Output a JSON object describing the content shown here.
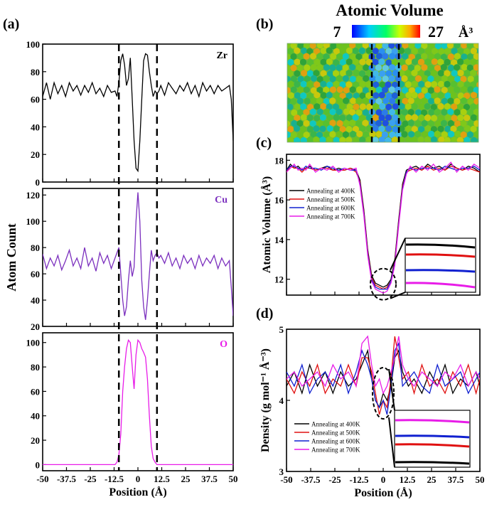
{
  "figure": {
    "panel_labels": [
      "(a)",
      "(b)",
      "(c)",
      "(d)"
    ],
    "dashed_marker_positions": [
      -10,
      10
    ]
  },
  "chart_data": [
    {
      "id": "a-zr",
      "type": "line",
      "panel": "(a)",
      "series_label": "Zr",
      "color": "#000000",
      "xlim": [
        -50,
        50
      ],
      "ylim": [
        0,
        100
      ],
      "yticks": [
        0,
        20,
        40,
        60,
        80,
        100
      ],
      "x": [
        -50,
        -48,
        -46,
        -44,
        -42,
        -40,
        -38,
        -36,
        -34,
        -32,
        -30,
        -28,
        -26,
        -24,
        -22,
        -20,
        -18,
        -16,
        -14,
        -12,
        -11,
        -10,
        -9,
        -8,
        -7,
        -6,
        -5,
        -4,
        -3,
        -2,
        -1,
        0,
        1,
        2,
        3,
        4,
        5,
        6,
        7,
        8,
        9,
        10,
        11,
        12,
        14,
        16,
        18,
        20,
        22,
        24,
        26,
        28,
        30,
        32,
        34,
        36,
        38,
        40,
        42,
        44,
        46,
        48,
        49,
        50
      ],
      "y": [
        62,
        72,
        60,
        72,
        64,
        70,
        62,
        72,
        66,
        70,
        63,
        70,
        65,
        72,
        64,
        68,
        62,
        70,
        65,
        66,
        62,
        72,
        88,
        93,
        85,
        70,
        75,
        90,
        60,
        30,
        10,
        8,
        30,
        60,
        88,
        93,
        92,
        80,
        70,
        62,
        66,
        64,
        66,
        70,
        63,
        72,
        68,
        64,
        70,
        66,
        72,
        64,
        70,
        62,
        72,
        66,
        70,
        64,
        70,
        66,
        68,
        70,
        60,
        30
      ]
    },
    {
      "id": "a-cu",
      "type": "line",
      "panel": "(a)",
      "series_label": "Cu",
      "color": "#7B2FBE",
      "xlim": [
        -50,
        50
      ],
      "ylim": [
        20,
        125
      ],
      "yticks": [
        20,
        40,
        60,
        80,
        100,
        120
      ],
      "ylabel": "Atom Count",
      "x": [
        -50,
        -48,
        -46,
        -44,
        -42,
        -40,
        -38,
        -36,
        -34,
        -32,
        -30,
        -28,
        -26,
        -24,
        -22,
        -20,
        -18,
        -16,
        -14,
        -12,
        -10,
        -9,
        -8,
        -7,
        -6,
        -5,
        -4,
        -3,
        -2,
        -1,
        0,
        1,
        2,
        3,
        4,
        5,
        6,
        7,
        8,
        9,
        10,
        11,
        12,
        14,
        16,
        18,
        20,
        22,
        24,
        26,
        28,
        30,
        32,
        34,
        36,
        38,
        40,
        42,
        44,
        46,
        48,
        49,
        50
      ],
      "y": [
        75,
        64,
        72,
        66,
        74,
        63,
        70,
        78,
        66,
        72,
        64,
        80,
        66,
        72,
        62,
        76,
        68,
        74,
        64,
        72,
        80,
        60,
        40,
        28,
        35,
        55,
        70,
        58,
        65,
        100,
        122,
        100,
        55,
        35,
        25,
        40,
        60,
        78,
        70,
        74,
        76,
        72,
        74,
        68,
        76,
        66,
        72,
        64,
        74,
        68,
        72,
        64,
        74,
        66,
        72,
        68,
        74,
        64,
        72,
        66,
        70,
        50,
        28
      ]
    },
    {
      "id": "a-o",
      "type": "line",
      "panel": "(a)",
      "series_label": "O",
      "color": "#E81CE8",
      "xlim": [
        -50,
        50
      ],
      "ylim": [
        -5,
        108
      ],
      "yticks": [
        0,
        20,
        40,
        60,
        80,
        100
      ],
      "xticks": [
        -50,
        -37.5,
        -25,
        -12.5,
        0,
        12.5,
        25,
        37.5,
        50
      ],
      "xticklabels": [
        "-50",
        "-37.5",
        "-25",
        "-12.5",
        "0",
        "12.5",
        "25",
        "37.5",
        "50"
      ],
      "xlabel": "Position (Å)",
      "x": [
        -50,
        -20,
        -12,
        -11,
        -10,
        -9,
        -8,
        -7,
        -6,
        -5,
        -4,
        -3,
        -2,
        -1,
        0,
        1,
        2,
        3,
        4,
        5,
        6,
        7,
        8,
        9,
        10,
        11,
        12,
        20,
        50
      ],
      "y": [
        0,
        0,
        0,
        2,
        8,
        25,
        60,
        80,
        95,
        102,
        100,
        80,
        62,
        90,
        102,
        100,
        95,
        92,
        88,
        70,
        40,
        15,
        5,
        2,
        0,
        0,
        0,
        0,
        0
      ]
    },
    {
      "id": "b",
      "type": "heatmap",
      "panel": "(b)",
      "title": "Atomic Volume",
      "colorbar": {
        "min_label": "7",
        "max_label": "27",
        "unit": "Å³",
        "colors": [
          "#0000FF",
          "#00CCFF",
          "#00FF66",
          "#CCFF00",
          "#FFAA00",
          "#FF0000"
        ]
      },
      "description_region": "low-volume band at center between dashed lines"
    },
    {
      "id": "c",
      "type": "line",
      "panel": "(c)",
      "xlim": [
        -50,
        50
      ],
      "ylim": [
        11.2,
        18.3
      ],
      "yticks": [
        12,
        14,
        16,
        18
      ],
      "ylabel": "Atomic Volume (Å³)",
      "legend": [
        "Annealing at 400K",
        "Annealing at 500K",
        "Annealing at 600K",
        "Annealing at 700K"
      ],
      "series": [
        {
          "name": "Annealing at 400K",
          "color": "#000000",
          "x": [
            -50,
            -48,
            -46,
            -44,
            -42,
            -40,
            -38,
            -35,
            -32,
            -29,
            -26,
            -23,
            -20,
            -17,
            -14,
            -12,
            -10,
            -8,
            -6,
            -4,
            -2,
            0,
            2,
            4,
            6,
            8,
            10,
            12,
            14,
            17,
            20,
            23,
            26,
            29,
            32,
            35,
            38,
            41,
            44,
            47,
            50
          ],
          "y": [
            17.5,
            17.8,
            17.6,
            17.7,
            17.5,
            17.6,
            17.7,
            17.5,
            17.6,
            17.7,
            17.5,
            17.6,
            17.5,
            17.6,
            17.5,
            17.0,
            15.5,
            13.5,
            12.2,
            11.8,
            11.7,
            11.6,
            11.7,
            12.0,
            13.0,
            15.0,
            16.8,
            17.5,
            17.6,
            17.7,
            17.5,
            17.8,
            17.6,
            17.7,
            17.5,
            17.8,
            17.6,
            17.5,
            17.7,
            17.6,
            17.4
          ]
        },
        {
          "name": "Annealing at 500K",
          "color": "#E01010",
          "x": [
            -50,
            -48,
            -46,
            -44,
            -42,
            -40,
            -38,
            -35,
            -32,
            -29,
            -26,
            -23,
            -20,
            -17,
            -14,
            -12,
            -10,
            -8,
            -6,
            -4,
            -2,
            0,
            2,
            4,
            6,
            8,
            10,
            12,
            14,
            17,
            20,
            23,
            26,
            29,
            32,
            35,
            38,
            41,
            44,
            47,
            50
          ],
          "y": [
            17.4,
            17.7,
            17.6,
            17.6,
            17.4,
            17.6,
            17.6,
            17.5,
            17.6,
            17.6,
            17.5,
            17.5,
            17.5,
            17.6,
            17.4,
            16.9,
            15.4,
            13.4,
            12.1,
            11.7,
            11.6,
            11.5,
            11.6,
            11.9,
            12.9,
            14.9,
            16.7,
            17.4,
            17.5,
            17.6,
            17.5,
            17.7,
            17.5,
            17.6,
            17.5,
            17.7,
            17.6,
            17.5,
            17.6,
            17.5,
            17.4
          ]
        },
        {
          "name": "Annealing at 600K",
          "color": "#1020D0",
          "x": [
            -50,
            -48,
            -46,
            -44,
            -42,
            -40,
            -38,
            -35,
            -32,
            -29,
            -26,
            -23,
            -20,
            -17,
            -14,
            -12,
            -10,
            -8,
            -6,
            -4,
            -2,
            0,
            2,
            4,
            6,
            8,
            10,
            12,
            14,
            17,
            20,
            23,
            26,
            29,
            32,
            35,
            38,
            41,
            44,
            47,
            50
          ],
          "y": [
            17.5,
            17.7,
            17.7,
            17.6,
            17.5,
            17.7,
            17.6,
            17.6,
            17.5,
            17.7,
            17.6,
            17.5,
            17.6,
            17.5,
            17.5,
            16.8,
            15.3,
            13.3,
            12.0,
            11.6,
            11.5,
            11.5,
            11.5,
            11.9,
            12.8,
            14.8,
            16.6,
            17.4,
            17.6,
            17.5,
            17.6,
            17.6,
            17.6,
            17.5,
            17.7,
            17.6,
            17.5,
            17.6,
            17.6,
            17.7,
            17.5
          ]
        },
        {
          "name": "Annealing at 700K",
          "color": "#E81CE8",
          "x": [
            -50,
            -48,
            -46,
            -44,
            -42,
            -40,
            -38,
            -35,
            -32,
            -29,
            -26,
            -23,
            -20,
            -17,
            -14,
            -12,
            -10,
            -8,
            -6,
            -4,
            -2,
            0,
            2,
            4,
            6,
            8,
            10,
            12,
            14,
            17,
            20,
            23,
            26,
            29,
            32,
            35,
            38,
            41,
            44,
            47,
            50
          ],
          "y": [
            17.4,
            17.6,
            17.8,
            17.5,
            17.6,
            17.5,
            17.8,
            17.4,
            17.6,
            17.5,
            17.7,
            17.4,
            17.6,
            17.5,
            17.6,
            16.7,
            15.2,
            13.2,
            11.9,
            11.5,
            11.4,
            11.3,
            11.4,
            11.8,
            12.7,
            14.7,
            16.5,
            17.3,
            17.7,
            17.4,
            17.7,
            17.5,
            17.8,
            17.4,
            17.6,
            17.9,
            17.4,
            17.7,
            17.5,
            17.8,
            17.6
          ]
        }
      ]
    },
    {
      "id": "d",
      "type": "line",
      "panel": "(d)",
      "xlim": [
        -50,
        50
      ],
      "ylim": [
        3,
        5
      ],
      "yticks": [
        3,
        4,
        5
      ],
      "xticks": [
        -50,
        -37.5,
        -25,
        -12.5,
        0,
        12.5,
        25,
        37.5,
        50
      ],
      "xticklabels": [
        "-50",
        "-37.5",
        "-25",
        "-12.5",
        "0",
        "12.5",
        "25",
        "37.5",
        "50"
      ],
      "xlabel": "Position (Å)",
      "ylabel": "Density (g mol⁻¹ Å⁻³)",
      "legend": [
        "Annealing at 400K",
        "Annealing at 500K",
        "Annealing at 600K",
        "Annealing at 700K"
      ],
      "series": [
        {
          "name": "Annealing at 400K",
          "color": "#000000",
          "x": [
            -50,
            -46,
            -42,
            -38,
            -34,
            -30,
            -26,
            -22,
            -18,
            -14,
            -11,
            -8,
            -6,
            -4,
            -2,
            0,
            2,
            4,
            6,
            8,
            10,
            13,
            16,
            20,
            24,
            28,
            32,
            36,
            40,
            44,
            48,
            50
          ],
          "y": [
            4.2,
            4.4,
            4.1,
            4.5,
            4.2,
            4.4,
            4.1,
            4.4,
            4.2,
            4.3,
            4.5,
            4.7,
            4.3,
            4.0,
            3.9,
            4.1,
            4.0,
            4.2,
            4.6,
            4.7,
            4.4,
            4.2,
            4.3,
            4.1,
            4.4,
            4.2,
            4.5,
            4.1,
            4.3,
            4.2,
            4.4,
            4.2
          ]
        },
        {
          "name": "Annealing at 500K",
          "color": "#E01010",
          "x": [
            -50,
            -46,
            -42,
            -38,
            -34,
            -30,
            -26,
            -22,
            -18,
            -14,
            -11,
            -8,
            -6,
            -4,
            -2,
            0,
            2,
            4,
            6,
            8,
            10,
            13,
            16,
            20,
            24,
            28,
            32,
            36,
            40,
            44,
            48,
            50
          ],
          "y": [
            4.3,
            4.1,
            4.4,
            4.2,
            4.5,
            4.1,
            4.3,
            4.2,
            4.5,
            4.2,
            4.6,
            4.6,
            4.4,
            4.1,
            3.8,
            4.0,
            3.9,
            4.3,
            4.9,
            4.6,
            4.3,
            4.4,
            4.1,
            4.5,
            4.2,
            4.3,
            4.1,
            4.4,
            4.2,
            4.5,
            4.1,
            4.3
          ]
        },
        {
          "name": "Annealing at 600K",
          "color": "#1020D0",
          "x": [
            -50,
            -46,
            -42,
            -38,
            -34,
            -30,
            -26,
            -22,
            -18,
            -14,
            -11,
            -8,
            -6,
            -4,
            -2,
            0,
            2,
            4,
            6,
            8,
            10,
            13,
            16,
            20,
            24,
            28,
            32,
            36,
            40,
            44,
            48,
            50
          ],
          "y": [
            4.4,
            4.2,
            4.5,
            4.1,
            4.3,
            4.4,
            4.2,
            4.5,
            4.1,
            4.4,
            4.7,
            4.5,
            4.3,
            4.0,
            3.9,
            4.0,
            3.8,
            4.2,
            4.7,
            4.8,
            4.2,
            4.3,
            4.4,
            4.2,
            4.1,
            4.5,
            4.2,
            4.3,
            4.4,
            4.1,
            4.3,
            4.4
          ]
        },
        {
          "name": "Annealing at 700K",
          "color": "#E81CE8",
          "x": [
            -50,
            -46,
            -42,
            -38,
            -34,
            -30,
            -26,
            -22,
            -18,
            -14,
            -11,
            -8,
            -6,
            -4,
            -2,
            0,
            2,
            4,
            6,
            8,
            10,
            13,
            16,
            20,
            24,
            28,
            32,
            36,
            40,
            44,
            48,
            50
          ],
          "y": [
            4.3,
            4.4,
            4.2,
            4.3,
            4.4,
            4.2,
            4.5,
            4.3,
            4.4,
            4.2,
            4.8,
            4.9,
            4.5,
            4.2,
            4.3,
            4.1,
            4.2,
            4.4,
            4.6,
            4.9,
            4.5,
            4.3,
            4.2,
            4.4,
            4.3,
            4.2,
            4.4,
            4.3,
            4.5,
            4.2,
            4.4,
            4.3
          ]
        }
      ]
    }
  ]
}
